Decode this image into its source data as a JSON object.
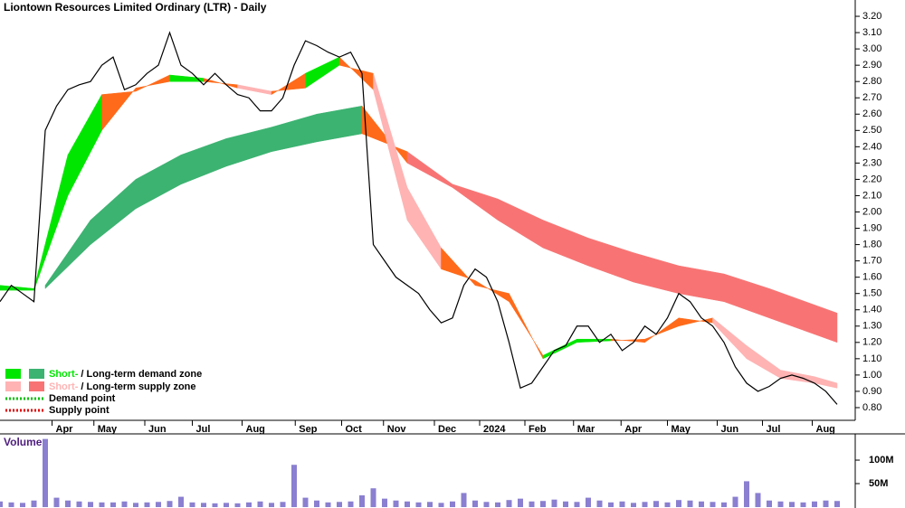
{
  "chart_data": {
    "type": "line",
    "title": "Liontown Resources Limited Ordinary (LTR) - Daily",
    "xlim": [
      0,
      74
    ],
    "xticks": [
      {
        "value": 4.6,
        "label": "Apr"
      },
      {
        "value": 8.3,
        "label": "May"
      },
      {
        "value": 12.8,
        "label": "Jun"
      },
      {
        "value": 17.0,
        "label": "Jul"
      },
      {
        "value": 21.4,
        "label": "Aug"
      },
      {
        "value": 26.1,
        "label": "Sep"
      },
      {
        "value": 30.2,
        "label": "Oct"
      },
      {
        "value": 33.9,
        "label": "Nov"
      },
      {
        "value": 38.4,
        "label": "Dec"
      },
      {
        "value": 42.4,
        "label": "2024"
      },
      {
        "value": 46.4,
        "label": "Feb"
      },
      {
        "value": 50.7,
        "label": "Mar"
      },
      {
        "value": 54.9,
        "label": "Apr"
      },
      {
        "value": 59.0,
        "label": "May"
      },
      {
        "value": 63.4,
        "label": "Jun"
      },
      {
        "value": 67.4,
        "label": "Jul"
      },
      {
        "value": 71.8,
        "label": "Aug"
      }
    ],
    "ylim": [
      0.7,
      3.3
    ],
    "yticks": [
      {
        "value": 0.8,
        "label": "0.80"
      },
      {
        "value": 0.9,
        "label": "0.90"
      },
      {
        "value": 1.0,
        "label": "1.00"
      },
      {
        "value": 1.1,
        "label": "1.10"
      },
      {
        "value": 1.2,
        "label": "1.20"
      },
      {
        "value": 1.3,
        "label": "1.30"
      },
      {
        "value": 1.4,
        "label": "1.40"
      },
      {
        "value": 1.5,
        "label": "1.50"
      },
      {
        "value": 1.6,
        "label": "1.60"
      },
      {
        "value": 1.7,
        "label": "1.70"
      },
      {
        "value": 1.8,
        "label": "1.80"
      },
      {
        "value": 1.9,
        "label": "1.90"
      },
      {
        "value": 2.0,
        "label": "2.00"
      },
      {
        "value": 2.1,
        "label": "2.10"
      },
      {
        "value": 2.2,
        "label": "2.20"
      },
      {
        "value": 2.3,
        "label": "2.30"
      },
      {
        "value": 2.4,
        "label": "2.40"
      },
      {
        "value": 2.5,
        "label": "2.50"
      },
      {
        "value": 2.6,
        "label": "2.60"
      },
      {
        "value": 2.7,
        "label": "2.70"
      },
      {
        "value": 2.8,
        "label": "2.80"
      },
      {
        "value": 2.9,
        "label": "2.90"
      },
      {
        "value": 3.0,
        "label": "3.00"
      },
      {
        "value": 3.1,
        "label": "3.10"
      },
      {
        "value": 3.2,
        "label": "3.20"
      }
    ],
    "x": [
      0,
      1,
      2,
      3,
      4,
      5,
      6,
      7,
      8,
      9,
      10,
      11,
      12,
      13,
      14,
      15,
      16,
      17,
      18,
      19,
      20,
      21,
      22,
      23,
      24,
      25,
      26,
      27,
      28,
      29,
      30,
      31,
      32,
      33,
      34,
      35,
      36,
      37,
      38,
      39,
      40,
      41,
      42,
      43,
      44,
      45,
      46,
      47,
      48,
      49,
      50,
      51,
      52,
      53,
      54,
      55,
      56,
      57,
      58,
      59,
      60,
      61,
      62,
      63,
      64,
      65,
      66,
      67,
      68,
      69,
      70,
      71,
      72,
      73,
      74
    ],
    "values": [
      1.45,
      1.55,
      1.5,
      1.45,
      2.5,
      2.65,
      2.75,
      2.78,
      2.8,
      2.9,
      2.95,
      2.75,
      2.78,
      2.85,
      2.9,
      3.1,
      2.9,
      2.85,
      2.78,
      2.85,
      2.78,
      2.72,
      2.7,
      2.62,
      2.62,
      2.7,
      2.9,
      3.05,
      3.02,
      2.98,
      2.95,
      2.98,
      2.85,
      1.8,
      1.7,
      1.6,
      1.55,
      1.5,
      1.4,
      1.32,
      1.35,
      1.55,
      1.65,
      1.6,
      1.45,
      1.2,
      0.92,
      0.95,
      1.05,
      1.15,
      1.18,
      1.3,
      1.3,
      1.2,
      1.25,
      1.15,
      1.2,
      1.3,
      1.25,
      1.35,
      1.5,
      1.45,
      1.35,
      1.3,
      1.2,
      1.05,
      0.95,
      0.9,
      0.93,
      0.98,
      1.0,
      0.98,
      0.95,
      0.9,
      0.82
    ],
    "color": "#000000",
    "bands": [
      {
        "x": [
          4,
          8,
          12,
          16,
          20,
          24,
          28,
          32,
          36,
          40,
          44,
          48,
          52,
          56,
          60,
          64,
          68,
          72,
          74
        ],
        "fast": [
          1.55,
          1.95,
          2.2,
          2.35,
          2.45,
          2.52,
          2.6,
          2.65,
          2.3,
          2.15,
          1.95,
          1.78,
          1.67,
          1.57,
          1.5,
          1.45,
          1.35,
          1.25,
          1.2
        ],
        "slow": [
          1.53,
          1.8,
          2.02,
          2.17,
          2.28,
          2.37,
          2.43,
          2.48,
          2.37,
          2.17,
          2.08,
          1.95,
          1.84,
          1.75,
          1.67,
          1.62,
          1.53,
          1.43,
          1.38
        ],
        "demand_color": "#3cb371",
        "supply_color": "#f87474",
        "transition_color": "#ff6a1a"
      },
      {
        "x": [
          0,
          3,
          6,
          9,
          12,
          15,
          18,
          21,
          24,
          27,
          30,
          33,
          36,
          39,
          42,
          45,
          48,
          51,
          54,
          57,
          60,
          63,
          66,
          69,
          72,
          74
        ],
        "fast": [
          1.55,
          1.53,
          2.35,
          2.72,
          2.74,
          2.84,
          2.82,
          2.76,
          2.72,
          2.85,
          2.95,
          2.75,
          1.95,
          1.65,
          1.58,
          1.45,
          1.12,
          1.22,
          1.22,
          1.2,
          1.35,
          1.32,
          1.1,
          0.98,
          0.95,
          0.92
        ],
        "slow": [
          1.52,
          1.52,
          2.1,
          2.5,
          2.76,
          2.8,
          2.8,
          2.78,
          2.74,
          2.76,
          2.9,
          2.85,
          2.15,
          1.78,
          1.55,
          1.5,
          1.1,
          1.2,
          1.21,
          1.22,
          1.3,
          1.35,
          1.18,
          1.03,
          0.99,
          0.95
        ],
        "demand_color": "#00e600",
        "supply_color": "#ffb3b3",
        "transition_color": "#ff6a1a"
      }
    ],
    "legend": [
      "Short-",
      "/ Long-term demand zone",
      "Short-",
      "/ Long-term supply zone",
      "Demand point",
      "Supply point"
    ],
    "volume": {
      "label": "Volume",
      "color": "#8a7fd0",
      "ylim": [
        0,
        152
      ],
      "yticks": [
        {
          "value": 50,
          "label": "50M"
        },
        {
          "value": 100,
          "label": "100M"
        }
      ],
      "values": [
        12,
        10,
        9,
        14,
        145,
        20,
        14,
        12,
        11,
        10,
        10,
        12,
        9,
        10,
        11,
        13,
        22,
        10,
        9,
        8,
        9,
        8,
        10,
        12,
        9,
        11,
        90,
        20,
        14,
        10,
        11,
        12,
        25,
        40,
        18,
        14,
        12,
        10,
        11,
        9,
        12,
        30,
        14,
        11,
        10,
        15,
        18,
        12,
        13,
        16,
        12,
        11,
        20,
        14,
        10,
        12,
        9,
        11,
        13,
        10,
        15,
        14,
        12,
        11,
        10,
        22,
        55,
        30,
        14,
        12,
        11,
        10,
        12,
        14,
        13
      ]
    }
  }
}
